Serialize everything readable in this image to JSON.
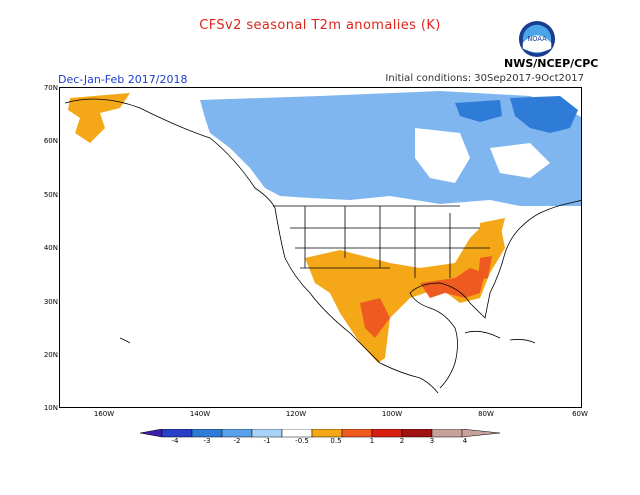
{
  "header": {
    "title": "CFSv2 seasonal T2m anomalies (K)",
    "season": "Dec-Jan-Feb 2017/2018",
    "initial_conditions": "Initial conditions: 30Sep2017-9Oct2017",
    "organization": "NWS/NCEP/CPC",
    "logo_text": "NOAA"
  },
  "map": {
    "latitude_labels": [
      "70N",
      "60N",
      "50N",
      "40N",
      "30N",
      "20N",
      "10N"
    ],
    "longitude_labels": [
      "160W",
      "140W",
      "120W",
      "100W",
      "80W",
      "60W"
    ],
    "regions": [
      {
        "name": "Canada / northern US",
        "anomaly_class": "-1",
        "color": "#7fb6f0"
      },
      {
        "name": "Northeast Canada / Baffin",
        "anomaly_class": "-2",
        "color": "#2f7bd8"
      },
      {
        "name": "Alaska west coast",
        "anomaly_class": "0.5",
        "color": "#f4a818"
      },
      {
        "name": "Southern US / Mexico",
        "anomaly_class": "0.5",
        "color": "#f4a818"
      },
      {
        "name": "Gulf coast / Southeast",
        "anomaly_class": "1",
        "color": "#ee5a20"
      }
    ]
  },
  "colorbar": {
    "labels": [
      "-4",
      "-3",
      "-2",
      "-1",
      "-0.5",
      "0.5",
      "1",
      "2",
      "3",
      "4"
    ],
    "colors": [
      "#3b1fa8",
      "#2a3fc8",
      "#2f7bd8",
      "#5aa0ea",
      "#a8d2f7",
      "#ffffff",
      "#f4a818",
      "#ee5a20",
      "#d81e0e",
      "#a01212",
      "#c8a29a"
    ]
  }
}
